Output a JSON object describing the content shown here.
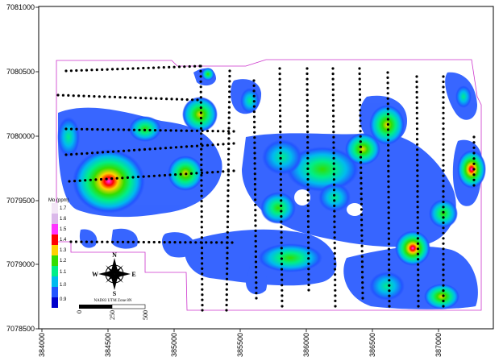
{
  "map": {
    "y_ticks": [
      "7081000",
      "7080500",
      "7080000",
      "7079500",
      "7079000",
      "7078500"
    ],
    "x_ticks": [
      "384000",
      "384500",
      "385000",
      "385500",
      "386000",
      "386500",
      "387000"
    ],
    "colors": {
      "boundary": "#cc33cc",
      "dots": "#000000",
      "frame": "#000000"
    }
  },
  "legend": {
    "title": "Mo (ppm)",
    "labels": [
      "1.7",
      "1.6",
      "1.5",
      "1.4",
      "1.3",
      "1.2",
      "1.1",
      "1.0",
      "0.9"
    ],
    "colors": [
      "#f3e6f6",
      "#dbb8ea",
      "#ff33ff",
      "#ff0000",
      "#ffd000",
      "#33dd00",
      "#00ee88",
      "#00bbee",
      "#2255ff",
      "#0000cc"
    ]
  },
  "north_arrow": {
    "north": "N",
    "south": "S",
    "east": "E",
    "west": "W"
  },
  "projection_label": "NAD83 UTM Zone 8N",
  "scale_bar": {
    "labels": [
      "0",
      "250",
      "500"
    ]
  }
}
